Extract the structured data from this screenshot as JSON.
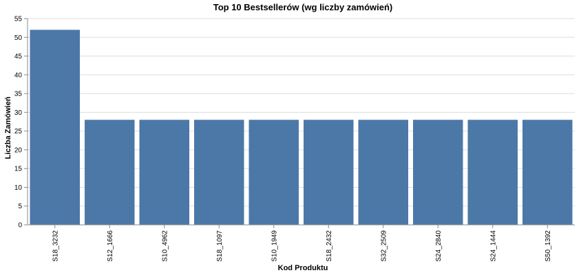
{
  "chart_data": {
    "type": "bar",
    "title": "Top 10 Bestsellerów (wg liczby zamówień)",
    "xlabel": "Kod Produktu",
    "ylabel": "Liczba Zamówień",
    "categories": [
      "S18_3232",
      "S12_1666",
      "S10_4962",
      "S18_1097",
      "S10_1949",
      "S18_2432",
      "S32_2509",
      "S24_2840",
      "S24_1444",
      "S50_1392"
    ],
    "values": [
      52,
      28,
      28,
      28,
      28,
      28,
      28,
      28,
      28,
      28
    ],
    "ylim": [
      0,
      55
    ],
    "yticks": [
      0,
      5,
      10,
      15,
      20,
      25,
      30,
      35,
      40,
      45,
      50,
      55
    ],
    "grid": true,
    "bar_color": "#4c78a8"
  }
}
